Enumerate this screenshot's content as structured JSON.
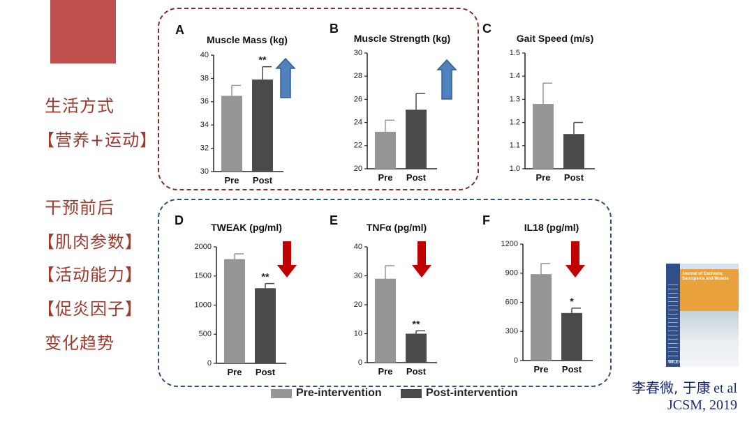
{
  "side_labels": {
    "top": [
      "生活方式",
      "【营养+运动】"
    ],
    "bottom": [
      "干预前后",
      "【肌肉参数】",
      "【活动能力】",
      "【促炎因子】",
      "变化趋势"
    ]
  },
  "legend": {
    "pre": "Pre-intervention",
    "post": "Post-intervention"
  },
  "colors": {
    "pre": "#969696",
    "post": "#4a4a4a",
    "up_arrow": "#4f81bd",
    "down_arrow": "#c00000"
  },
  "journal_cover": {
    "title": "Journal of Cachexia, Sarcopenia and Muscle",
    "publisher": "WILEY"
  },
  "citation": {
    "authors_cn": "李春微, 于康",
    "et_al": "et al",
    "journal": "JCSM, 2019"
  },
  "chart_data": [
    {
      "type": "bar",
      "panel": "A",
      "title": "Muscle Mass (kg)",
      "categories": [
        "Pre",
        "Post"
      ],
      "values": [
        36.5,
        37.9
      ],
      "errors": [
        0.9,
        1.1
      ],
      "ylim": [
        30,
        40
      ],
      "ticks": [
        30,
        32,
        34,
        36,
        38,
        40
      ],
      "significance": [
        "",
        "**"
      ],
      "arrow": "up"
    },
    {
      "type": "bar",
      "panel": "B",
      "title": "Muscle Strength (kg)",
      "categories": [
        "Pre",
        "Post"
      ],
      "values": [
        23.2,
        25.1
      ],
      "errors": [
        1.0,
        1.4
      ],
      "ylim": [
        20,
        30
      ],
      "ticks": [
        20,
        22,
        24,
        26,
        28,
        30
      ],
      "significance": [
        "",
        ""
      ],
      "arrow": "up"
    },
    {
      "type": "bar",
      "panel": "C",
      "title": "Gait Speed (m/s)",
      "categories": [
        "Pre",
        "Post"
      ],
      "values": [
        1.28,
        1.15
      ],
      "errors": [
        0.09,
        0.05
      ],
      "ylim": [
        1.0,
        1.5
      ],
      "ticks": [
        "1.0",
        "1.1",
        "1.2",
        "1.3",
        "1.4",
        "1.5"
      ],
      "significance": [
        "",
        ""
      ],
      "arrow": "none"
    },
    {
      "type": "bar",
      "panel": "D",
      "title": "TWEAK (pg/ml)",
      "categories": [
        "Pre",
        "Post"
      ],
      "values": [
        1790,
        1290
      ],
      "errors": [
        90,
        80
      ],
      "ylim": [
        0,
        2000
      ],
      "ticks": [
        0,
        500,
        1000,
        1500,
        2000
      ],
      "significance": [
        "",
        "**"
      ],
      "arrow": "down"
    },
    {
      "type": "bar",
      "panel": "E",
      "title": "TNFα (pg/ml)",
      "categories": [
        "Pre",
        "Post"
      ],
      "values": [
        29,
        10
      ],
      "errors": [
        4.5,
        1.0
      ],
      "ylim": [
        0,
        40
      ],
      "ticks": [
        0,
        10,
        20,
        30,
        40
      ],
      "significance": [
        "",
        "**"
      ],
      "arrow": "down"
    },
    {
      "type": "bar",
      "panel": "F",
      "title": "IL18 (pg/ml)",
      "categories": [
        "Pre",
        "Post"
      ],
      "values": [
        890,
        490
      ],
      "errors": [
        110,
        50
      ],
      "ylim": [
        0,
        1200
      ],
      "ticks": [
        0,
        300,
        600,
        900,
        1200
      ],
      "significance": [
        "",
        "*"
      ],
      "arrow": "down"
    }
  ]
}
